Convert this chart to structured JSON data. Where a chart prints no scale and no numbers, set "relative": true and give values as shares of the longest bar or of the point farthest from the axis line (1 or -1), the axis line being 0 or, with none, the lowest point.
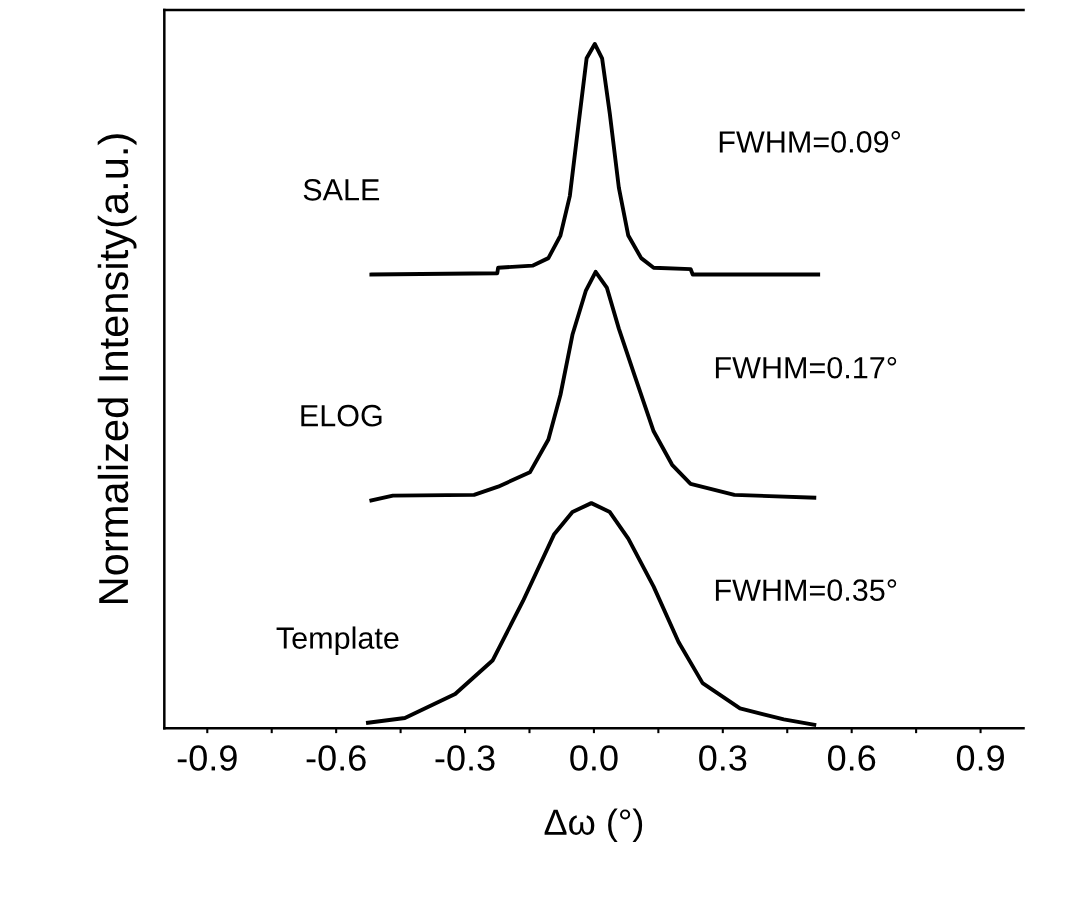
{
  "chart_data": {
    "type": "line",
    "xlabel": "Δω (°)",
    "ylabel": "Normalized Intensity(a.u.)",
    "relative": true,
    "xlim": [
      -1.0,
      1.0
    ],
    "xticks": [
      {
        "value": -0.9,
        "label": "-0.9"
      },
      {
        "value": -0.75,
        "label": null
      },
      {
        "value": -0.6,
        "label": "-0.6"
      },
      {
        "value": -0.45,
        "label": null
      },
      {
        "value": -0.3,
        "label": "-0.3"
      },
      {
        "value": -0.15,
        "label": null
      },
      {
        "value": 0.0,
        "label": "0.0"
      },
      {
        "value": 0.15,
        "label": null
      },
      {
        "value": 0.3,
        "label": "0.3"
      },
      {
        "value": 0.45,
        "label": null
      },
      {
        "value": 0.6,
        "label": "0.6"
      },
      {
        "value": 0.75,
        "label": null
      },
      {
        "value": 0.9,
        "label": "0.9"
      }
    ],
    "tick_labels": "x",
    "grid": false,
    "legend": false,
    "marker": "none",
    "line_style": "solid",
    "series": [
      {
        "name": "SALE",
        "color": "#000000",
        "x": [
          -0.518,
          -0.225,
          -0.223,
          -0.143,
          -0.106,
          -0.078,
          -0.056,
          -0.035,
          -0.017,
          0.002,
          0.019,
          0.037,
          0.058,
          0.08,
          0.11,
          0.139,
          0.225,
          0.23,
          0.522
        ],
        "values": [
          0.663,
          0.665,
          0.673,
          0.676,
          0.687,
          0.72,
          0.778,
          0.887,
          0.979,
          1.0,
          0.979,
          0.898,
          0.79,
          0.72,
          0.687,
          0.673,
          0.671,
          0.663,
          0.663
        ]
      },
      {
        "name": "ELOG",
        "color": "#000000",
        "x": [
          -0.518,
          -0.468,
          -0.279,
          -0.223,
          -0.149,
          -0.106,
          -0.078,
          -0.05,
          -0.019,
          0.004,
          0.03,
          0.058,
          0.095,
          0.139,
          0.182,
          0.225,
          0.327,
          0.513
        ],
        "values": [
          0.333,
          0.34,
          0.341,
          0.353,
          0.374,
          0.422,
          0.487,
          0.575,
          0.639,
          0.667,
          0.644,
          0.584,
          0.515,
          0.434,
          0.385,
          0.357,
          0.341,
          0.337
        ]
      },
      {
        "name": "Template",
        "color": "#000000",
        "x": [
          -0.526,
          -0.44,
          -0.323,
          -0.236,
          -0.165,
          -0.093,
          -0.05,
          -0.006,
          0.037,
          0.08,
          0.139,
          0.197,
          0.253,
          0.34,
          0.442,
          0.513
        ],
        "values": [
          0.008,
          0.015,
          0.05,
          0.099,
          0.186,
          0.283,
          0.316,
          0.329,
          0.316,
          0.277,
          0.207,
          0.126,
          0.066,
          0.029,
          0.013,
          0.005
        ]
      }
    ],
    "annotations": [
      "FWHM=0.09°",
      "FWHM=0.17°",
      "FWHM=0.35°"
    ]
  }
}
